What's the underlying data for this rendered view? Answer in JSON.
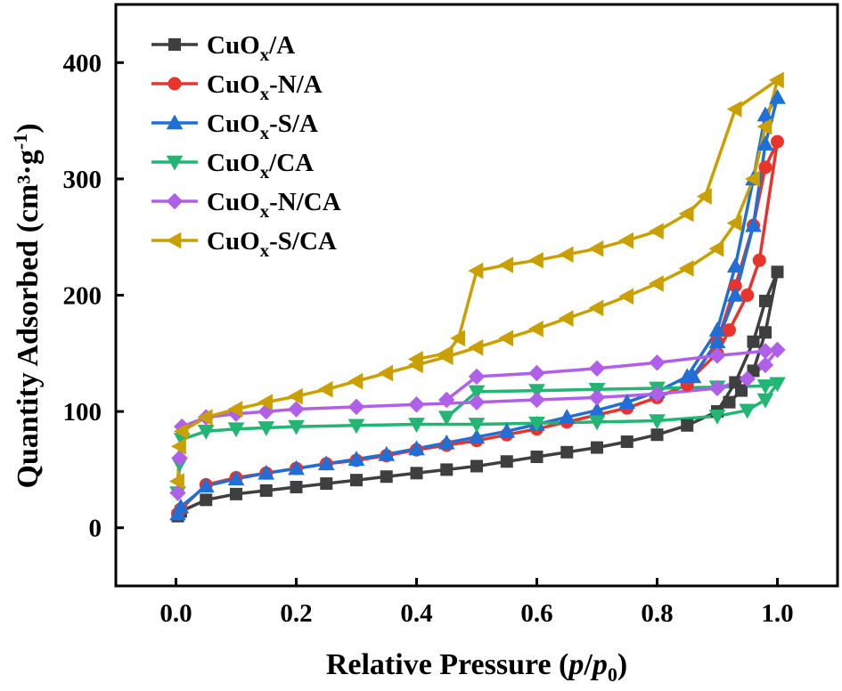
{
  "chart_data": {
    "type": "line",
    "xlabel": "Relative Pressure (p/p0)",
    "ylabel": "Quantity Adsorbed (cm³·g⁻¹)",
    "xlim": [
      -0.1,
      1.1
    ],
    "ylim": [
      -50,
      450
    ],
    "xticks": [
      0.0,
      0.2,
      0.4,
      0.6,
      0.8,
      1.0
    ],
    "xtick_labels": [
      "0.0",
      "0.2",
      "0.4",
      "0.6",
      "0.8",
      "1.0"
    ],
    "yticks": [
      0,
      100,
      200,
      300,
      400
    ],
    "ytick_labels": [
      "0",
      "100",
      "200",
      "300",
      "400"
    ],
    "grid": false,
    "legend_position": "top-left",
    "series": [
      {
        "name": "CuOx/A",
        "name_parts": [
          "CuO",
          "x",
          "/A"
        ],
        "color": "#3f3f3f",
        "marker": "square",
        "x": [
          0.003,
          0.008,
          0.05,
          0.1,
          0.15,
          0.2,
          0.25,
          0.3,
          0.35,
          0.4,
          0.45,
          0.5,
          0.55,
          0.6,
          0.65,
          0.7,
          0.75,
          0.8,
          0.85,
          0.9,
          0.93,
          0.96,
          0.98,
          1.0,
          0.98,
          0.96,
          0.94,
          0.92,
          0.9
        ],
        "y": [
          10,
          14,
          24,
          29,
          32,
          35,
          38,
          41,
          44,
          47,
          50,
          53,
          57,
          61,
          65,
          69,
          74,
          80,
          88,
          100,
          125,
          160,
          195,
          220,
          168,
          135,
          118,
          108,
          100
        ]
      },
      {
        "name": "CuOx-N/A",
        "name_parts": [
          "CuO",
          "x",
          "-N/A"
        ],
        "color": "#e8342d",
        "marker": "circle",
        "x": [
          0.003,
          0.008,
          0.05,
          0.1,
          0.15,
          0.2,
          0.25,
          0.3,
          0.35,
          0.4,
          0.45,
          0.5,
          0.55,
          0.6,
          0.65,
          0.7,
          0.75,
          0.8,
          0.85,
          0.9,
          0.93,
          0.96,
          0.98,
          1.0,
          0.97,
          0.95,
          0.92,
          0.9,
          0.85
        ],
        "y": [
          12,
          16,
          37,
          43,
          47,
          51,
          55,
          58,
          62,
          67,
          71,
          75,
          80,
          85,
          91,
          97,
          103,
          112,
          123,
          160,
          208,
          260,
          310,
          332,
          230,
          200,
          170,
          150,
          125
        ]
      },
      {
        "name": "CuOx-S/A",
        "name_parts": [
          "CuO",
          "x",
          "-S/A"
        ],
        "color": "#1f6fd6",
        "marker": "triangle-up",
        "x": [
          0.003,
          0.008,
          0.05,
          0.1,
          0.15,
          0.2,
          0.25,
          0.3,
          0.35,
          0.4,
          0.45,
          0.5,
          0.55,
          0.6,
          0.65,
          0.7,
          0.75,
          0.8,
          0.85,
          0.9,
          0.93,
          0.96,
          0.98,
          1.0,
          0.98,
          0.96,
          0.93,
          0.9,
          0.86
        ],
        "y": [
          12,
          18,
          36,
          42,
          47,
          51,
          55,
          59,
          63,
          68,
          73,
          78,
          83,
          89,
          95,
          101,
          108,
          117,
          130,
          170,
          225,
          300,
          355,
          370,
          330,
          260,
          200,
          160,
          130
        ]
      },
      {
        "name": "CuOx/CA",
        "name_parts": [
          "CuO",
          "x",
          "/CA"
        ],
        "color": "#22b573",
        "marker": "triangle-down",
        "x": [
          0.003,
          0.006,
          0.01,
          0.05,
          0.1,
          0.15,
          0.2,
          0.3,
          0.4,
          0.5,
          0.6,
          0.7,
          0.8,
          0.9,
          0.95,
          0.98,
          1.0,
          0.98,
          0.9,
          0.8,
          0.7,
          0.6,
          0.5,
          0.45
        ],
        "y": [
          30,
          55,
          76,
          83,
          85,
          86,
          87,
          88,
          89,
          89,
          90,
          91,
          92,
          96,
          101,
          110,
          124,
          122,
          121,
          120,
          119,
          118,
          117,
          95
        ]
      },
      {
        "name": "CuOx-N/CA",
        "name_parts": [
          "CuO",
          "x",
          "-N/CA"
        ],
        "color": "#b060e8",
        "marker": "diamond",
        "x": [
          0.003,
          0.006,
          0.01,
          0.05,
          0.1,
          0.15,
          0.2,
          0.3,
          0.4,
          0.5,
          0.6,
          0.7,
          0.8,
          0.9,
          0.95,
          0.98,
          1.0,
          0.98,
          0.9,
          0.8,
          0.7,
          0.6,
          0.5,
          0.45
        ],
        "y": [
          30,
          60,
          87,
          95,
          98,
          100,
          102,
          104,
          106,
          108,
          110,
          112,
          115,
          120,
          128,
          140,
          153,
          152,
          148,
          142,
          137,
          133,
          130,
          110
        ]
      },
      {
        "name": "CuOx-S/CA",
        "name_parts": [
          "CuO",
          "x",
          "-S/CA"
        ],
        "color": "#c9a000",
        "marker": "triangle-left",
        "x": [
          0.003,
          0.006,
          0.01,
          0.05,
          0.1,
          0.15,
          0.2,
          0.25,
          0.3,
          0.35,
          0.4,
          0.45,
          0.5,
          0.55,
          0.6,
          0.65,
          0.7,
          0.75,
          0.8,
          0.85,
          0.9,
          0.93,
          0.96,
          0.98,
          1.0,
          0.93,
          0.88,
          0.85,
          0.8,
          0.75,
          0.7,
          0.65,
          0.6,
          0.55,
          0.5,
          0.47,
          0.45,
          0.4
        ],
        "y": [
          40,
          70,
          83,
          95,
          102,
          108,
          113,
          119,
          126,
          133,
          140,
          147,
          155,
          163,
          171,
          180,
          189,
          199,
          210,
          223,
          240,
          262,
          300,
          345,
          385,
          360,
          285,
          270,
          255,
          247,
          240,
          235,
          230,
          226,
          221,
          163,
          150,
          145
        ]
      }
    ]
  }
}
